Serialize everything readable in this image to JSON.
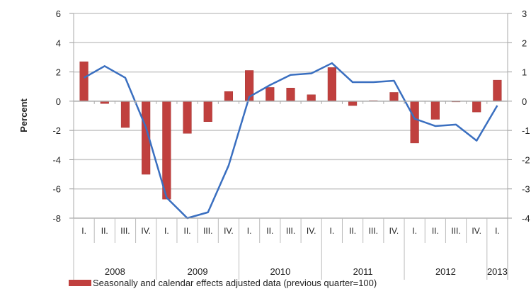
{
  "chart_data": {
    "type": "bar+line",
    "ylabel": "Percent",
    "y_left": {
      "range": [
        -8,
        6
      ],
      "ticks": [
        "6",
        "4",
        "2",
        "0",
        "-2",
        "-4",
        "-6",
        "-8"
      ]
    },
    "y_right": {
      "range": [
        -4,
        3
      ],
      "ticks": [
        "3",
        "2",
        "1",
        "0",
        "-1",
        "-2",
        "-3",
        "-4"
      ]
    },
    "grid": true,
    "legend_position": "bottom",
    "quarters": [
      "I.",
      "II.",
      "III.",
      "IV.",
      "I.",
      "II.",
      "III.",
      "IV.",
      "I.",
      "II.",
      "III.",
      "IV.",
      "I.",
      "II.",
      "III.",
      "IV.",
      "I.",
      "II.",
      "III.",
      "IV.",
      "I."
    ],
    "years": [
      {
        "label": "2008",
        "quarters": 4
      },
      {
        "label": "2009",
        "quarters": 4
      },
      {
        "label": "2010",
        "quarters": 4
      },
      {
        "label": "2011",
        "quarters": 4
      },
      {
        "label": "2012",
        "quarters": 4
      },
      {
        "label": "2013",
        "quarters": 1
      }
    ],
    "series": [
      {
        "name": "Seasonally and calendar effects adjusted data (previous quarter=100)",
        "type": "bar",
        "axis": "right",
        "color": "#c0403e",
        "values": [
          1.35,
          -0.08,
          -0.9,
          -2.5,
          -3.35,
          -1.1,
          -0.7,
          0.33,
          1.05,
          0.47,
          0.45,
          0.22,
          1.15,
          -0.15,
          0.02,
          0.3,
          -1.43,
          -0.62,
          -0.02,
          -0.37,
          0.72
        ]
      },
      {
        "type": "line",
        "axis": "left",
        "color": "#3a6fc0",
        "values": [
          1.6,
          2.4,
          1.6,
          -1.8,
          -6.6,
          -8.0,
          -7.6,
          -4.4,
          0.3,
          1.1,
          1.8,
          1.9,
          2.6,
          1.3,
          1.3,
          1.4,
          -1.2,
          -1.7,
          -1.6,
          -2.7,
          -0.3
        ]
      }
    ]
  }
}
